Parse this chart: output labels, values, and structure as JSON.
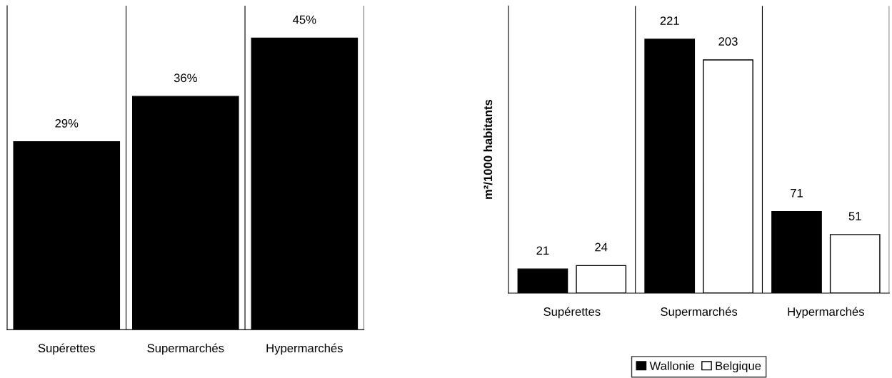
{
  "chart_data": [
    {
      "type": "bar",
      "categories": [
        "Supérettes",
        "Supermarchés",
        "Hypermarchés"
      ],
      "series": [
        {
          "color": "#000000",
          "values": [
            29,
            36,
            45
          ],
          "value_labels": [
            "29%",
            "36%",
            "45%"
          ]
        }
      ],
      "ylim": [
        0,
        50
      ],
      "tick_labels": "x",
      "grid": "x"
    },
    {
      "type": "bar",
      "categories": [
        "Supérettes",
        "Supermarchés",
        "Hypermarchés"
      ],
      "ylabel": "m²/1000 habitants",
      "series": [
        {
          "name": "Wallonie",
          "color": "#000000",
          "values": [
            21,
            221,
            71
          ]
        },
        {
          "name": "Belgique",
          "color": "#ffffff",
          "values": [
            24,
            203,
            51
          ]
        }
      ],
      "ylim": [
        0,
        250
      ],
      "tick_labels": "x",
      "grid": "x",
      "data_labels": true,
      "legend": "bottom"
    }
  ]
}
